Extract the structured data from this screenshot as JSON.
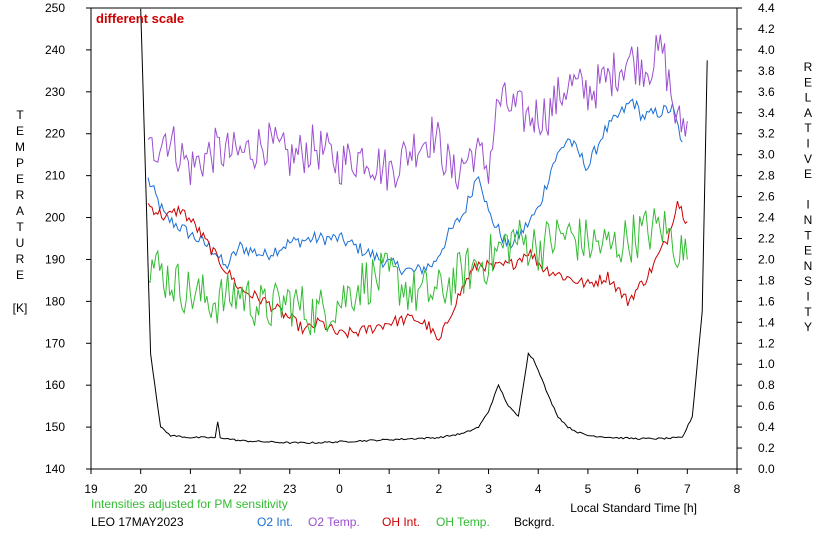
{
  "chart_data": {
    "type": "line",
    "annotation": "different scale",
    "left_axis": {
      "title_letters": [
        "T",
        "E",
        "M",
        "P",
        "E",
        "R",
        "A",
        "T",
        "U",
        "R",
        "E"
      ],
      "unit": "[K]",
      "range": [
        140,
        250
      ],
      "ticks": [
        "140",
        "150",
        "160",
        "170",
        "180",
        "190",
        "200",
        "210",
        "220",
        "230",
        "240",
        "250"
      ]
    },
    "right_axis": {
      "title_letters": [
        "R",
        "E",
        "L",
        "A",
        "T",
        "I",
        "V",
        "E",
        "",
        "I",
        "N",
        "T",
        "E",
        "N",
        "S",
        "I",
        "T",
        "Y"
      ],
      "range": [
        0.0,
        4.4
      ],
      "ticks": [
        "0.0",
        "0.2",
        "0.4",
        "0.6",
        "0.8",
        "1.0",
        "1.2",
        "1.4",
        "1.6",
        "1.8",
        "2.0",
        "2.2",
        "2.4",
        "2.6",
        "2.8",
        "3.0",
        "3.2",
        "3.4",
        "3.6",
        "3.8",
        "4.0",
        "4.2",
        "4.4"
      ]
    },
    "x_axis": {
      "label": "Local Standard Time [h]",
      "range": [
        19,
        32
      ],
      "ticks": [
        "19",
        "20",
        "21",
        "22",
        "23",
        "0",
        "1",
        "2",
        "3",
        "4",
        "5",
        "6",
        "7",
        "8"
      ]
    },
    "series": [
      {
        "name": "O2 Int.",
        "color": "#1a6fd6",
        "axis": "left",
        "x": [
          20.15,
          20.5,
          21.0,
          21.5,
          21.7,
          22.0,
          22.5,
          23.0,
          23.5,
          24.0,
          24.5,
          25.0,
          25.5,
          25.9,
          26.2,
          26.5,
          26.8,
          27.0,
          27.4,
          27.7,
          28.0,
          28.3,
          28.6,
          29.0,
          29.3,
          29.6,
          29.9,
          30.1,
          30.4,
          30.7,
          30.9
        ],
        "y": [
          209,
          200,
          196,
          192,
          188,
          193,
          191,
          194,
          195,
          195,
          192,
          189,
          187,
          189,
          196,
          201,
          211,
          201,
          193,
          197,
          202,
          213,
          219,
          212,
          220,
          224,
          228,
          224,
          225,
          226,
          218
        ]
      },
      {
        "name": "O2 Temp.",
        "color": "#9b4fd0",
        "axis": "left",
        "x": [
          20.15,
          20.5,
          21.0,
          21.5,
          22.0,
          22.5,
          23.0,
          23.5,
          24.0,
          24.5,
          25.0,
          25.5,
          25.9,
          26.3,
          26.7,
          27.0,
          27.2,
          27.5,
          27.8,
          28.2,
          28.6,
          29.0,
          29.4,
          29.8,
          30.2,
          30.5,
          30.8,
          31.0
        ],
        "y": [
          215,
          220,
          212,
          216,
          215,
          218,
          214,
          217,
          213,
          215,
          211,
          217,
          220,
          210,
          216,
          212,
          228,
          226,
          224,
          225,
          232,
          230,
          233,
          238,
          236,
          240,
          222,
          223
        ]
      },
      {
        "name": "OH Int.",
        "color": "#cc0000",
        "axis": "left",
        "x": [
          20.15,
          20.5,
          20.8,
          21.1,
          21.5,
          22.0,
          22.5,
          23.0,
          23.3,
          23.6,
          24.0,
          24.5,
          25.0,
          25.5,
          25.8,
          26.0,
          26.3,
          26.6,
          26.8,
          27.1,
          27.5,
          27.8,
          28.1,
          28.5,
          29.0,
          29.4,
          29.8,
          30.2,
          30.6,
          30.8,
          31.0
        ],
        "y": [
          203,
          200,
          202,
          198,
          191,
          183,
          180,
          176,
          173,
          175,
          172,
          173,
          175,
          176,
          174,
          170,
          179,
          186,
          189,
          188,
          189,
          192,
          188,
          186,
          184,
          186,
          180,
          186,
          195,
          204,
          199
        ]
      },
      {
        "name": "OH Temp.",
        "color": "#33bb33",
        "axis": "left",
        "x": [
          20.15,
          20.5,
          21.0,
          21.5,
          22.0,
          22.5,
          23.0,
          23.5,
          24.0,
          24.5,
          25.0,
          25.5,
          26.0,
          26.5,
          27.0,
          27.5,
          28.0,
          28.5,
          29.0,
          29.5,
          30.0,
          30.5,
          30.8,
          31.0
        ],
        "y": [
          190,
          186,
          182,
          180,
          182,
          178,
          180,
          177,
          180,
          185,
          186,
          182,
          182,
          187,
          190,
          195,
          193,
          196,
          194,
          193,
          196,
          198,
          193,
          190
        ]
      },
      {
        "name": "Bckgrd.",
        "color": "#000000",
        "axis": "right",
        "x": [
          20.0,
          20.2,
          20.4,
          20.6,
          21.0,
          21.5,
          21.55,
          21.6,
          22.0,
          22.5,
          23.0,
          23.5,
          24.0,
          24.5,
          25.0,
          25.5,
          26.0,
          26.5,
          26.8,
          27.0,
          27.2,
          27.4,
          27.6,
          27.8,
          27.9,
          28.0,
          28.2,
          28.4,
          28.6,
          28.8,
          29.0,
          29.5,
          30.0,
          30.5,
          30.9,
          31.1,
          31.3,
          31.4
        ],
        "y": [
          4.4,
          1.1,
          0.4,
          0.32,
          0.3,
          0.3,
          0.45,
          0.3,
          0.27,
          0.26,
          0.25,
          0.25,
          0.26,
          0.27,
          0.28,
          0.29,
          0.3,
          0.34,
          0.4,
          0.55,
          0.8,
          0.6,
          0.5,
          1.1,
          1.05,
          0.95,
          0.7,
          0.5,
          0.4,
          0.35,
          0.32,
          0.3,
          0.29,
          0.29,
          0.3,
          0.5,
          1.5,
          3.9
        ]
      }
    ]
  },
  "footer": {
    "adjust_note": "Intensities adjusted for PM sensitivity",
    "station_date": "LEO 17MAY2023",
    "legend": [
      {
        "label": "O2 Int.",
        "color": "#1a6fd6"
      },
      {
        "label": "O2 Temp.",
        "color": "#9b4fd0"
      },
      {
        "label": "OH Int.",
        "color": "#cc0000"
      },
      {
        "label": "OH Temp.",
        "color": "#33bb33"
      },
      {
        "label": "Bckgrd.",
        "color": "#000000"
      }
    ]
  }
}
